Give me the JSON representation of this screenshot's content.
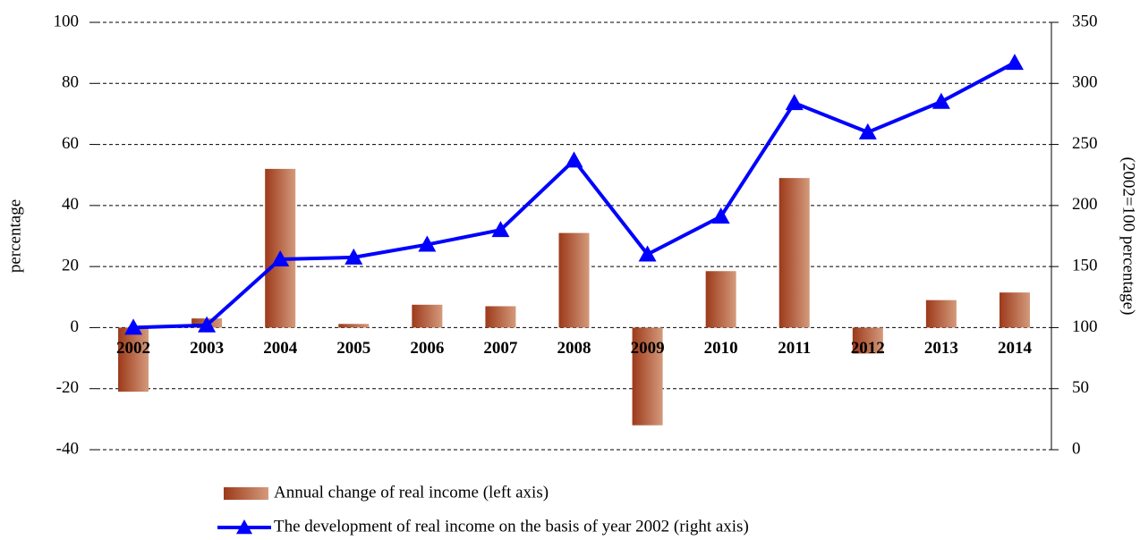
{
  "chart_data": {
    "type": "bar_line",
    "categories": [
      "2002",
      "2003",
      "2004",
      "2005",
      "2006",
      "2007",
      "2008",
      "2009",
      "2010",
      "2011",
      "2012",
      "2013",
      "2014"
    ],
    "series": [
      {
        "name": "Annual change of real income (left axis)",
        "color": "#9c3a1a",
        "type": "bar",
        "values": [
          -21,
          3,
          52,
          1.2,
          7.5,
          7,
          31,
          -32,
          18.5,
          49,
          -8.5,
          9,
          11.5
        ]
      },
      {
        "name": "The development of real income on the basis of year 2002 (right axis)",
        "color": "#0000ff",
        "type": "line",
        "axis": "y2",
        "values": [
          100,
          102,
          156,
          157.5,
          168,
          180,
          237,
          160,
          191,
          284,
          260,
          285,
          317
        ]
      }
    ],
    "ylabel": "percentage",
    "y2label": "(2002=100 percentage)",
    "ylim": [
      -40,
      100
    ],
    "yticks": [
      -40,
      -20,
      0,
      20,
      40,
      60,
      80,
      100
    ],
    "y2lim": [
      0,
      350
    ],
    "y2ticks": [
      0,
      50,
      100,
      150,
      200,
      250,
      300,
      350
    ],
    "grid": true
  }
}
